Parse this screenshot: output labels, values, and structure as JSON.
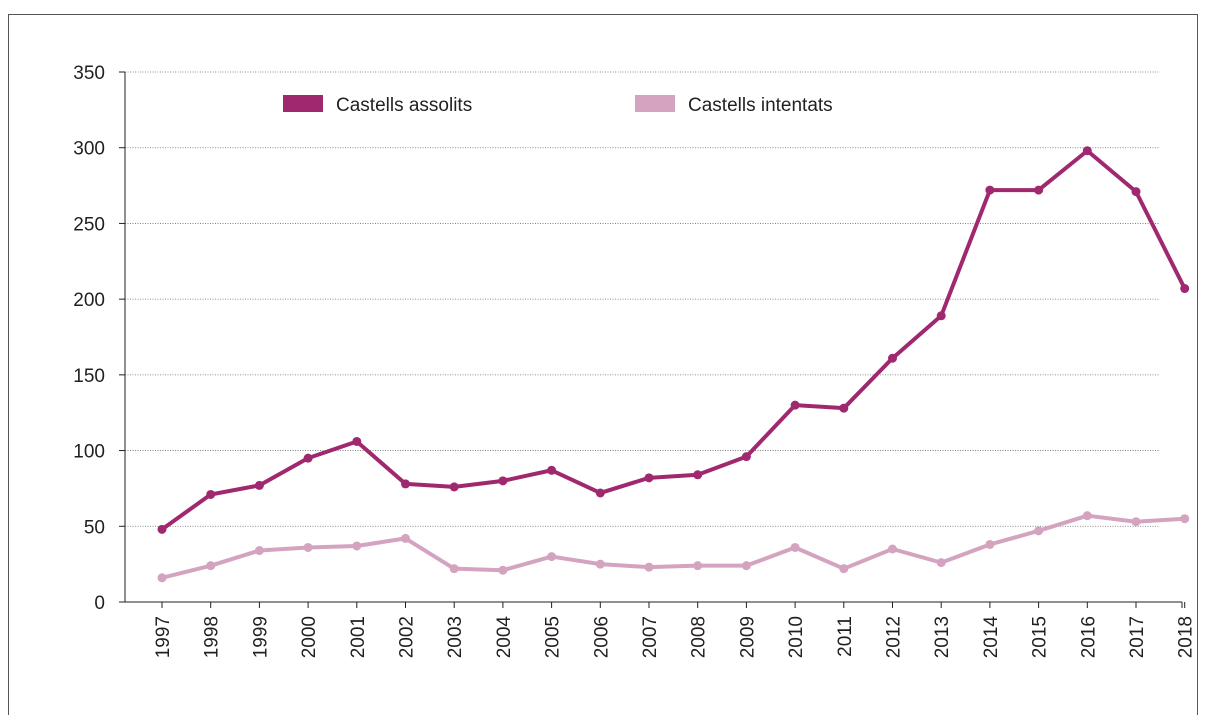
{
  "chart_data": {
    "type": "line",
    "title": "",
    "xlabel": "",
    "ylabel": "",
    "x": [
      "1997",
      "1998",
      "1999",
      "2000",
      "2001",
      "2002",
      "2003",
      "2004",
      "2005",
      "2006",
      "2007",
      "2008",
      "2009",
      "2010",
      "2011",
      "2012",
      "2013",
      "2014",
      "2015",
      "2016",
      "2017",
      "2018"
    ],
    "ylim": [
      0,
      350
    ],
    "yticks": [
      0,
      50,
      100,
      150,
      200,
      250,
      300,
      350
    ],
    "grid": true,
    "legend_position": "top",
    "series": [
      {
        "name": "Castells assolits",
        "color": "#a0286f",
        "values": [
          48,
          71,
          77,
          95,
          106,
          78,
          76,
          80,
          87,
          72,
          82,
          84,
          96,
          130,
          128,
          161,
          189,
          272,
          272,
          298,
          271,
          207
        ]
      },
      {
        "name": "Castells intentats",
        "color": "#d4a3bf",
        "values": [
          16,
          24,
          34,
          36,
          37,
          42,
          22,
          21,
          30,
          25,
          23,
          24,
          24,
          36,
          22,
          35,
          26,
          38,
          47,
          57,
          53,
          55
        ]
      }
    ]
  }
}
